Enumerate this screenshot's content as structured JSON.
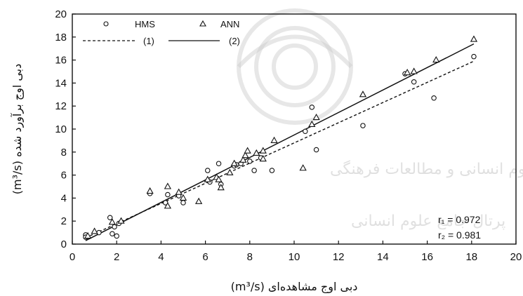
{
  "chart_data": {
    "type": "scatter",
    "xlabel": "دبی اوج مشاهده‌ای (m³/s)",
    "ylabel": "دبی اوج برآورد شده (m³/s)",
    "xlim": [
      0,
      20
    ],
    "ylim": [
      0,
      20
    ],
    "xticks": [
      "0",
      "2",
      "4",
      "6",
      "8",
      "10",
      "12",
      "14",
      "16",
      "18",
      "20"
    ],
    "yticks": [
      "0",
      "2",
      "4",
      "6",
      "8",
      "10",
      "12",
      "14",
      "16",
      "18",
      "20"
    ],
    "grid": false,
    "legend_position": "top-left",
    "legend": {
      "hms": "HMS",
      "ann": "ANN",
      "line1": "(1)",
      "line2": "(2)"
    },
    "annotations": {
      "r1": "r₁ = 0.972",
      "r2": "r₂ = 0.981"
    },
    "series": [
      {
        "name": "HMS",
        "marker": "circle",
        "points": [
          [
            0.6,
            0.8
          ],
          [
            0.6,
            0.6
          ],
          [
            1.2,
            1.0
          ],
          [
            1.7,
            2.3
          ],
          [
            1.8,
            0.9
          ],
          [
            1.9,
            1.5
          ],
          [
            2.0,
            0.7
          ],
          [
            2.1,
            1.8
          ],
          [
            3.5,
            4.4
          ],
          [
            4.3,
            4.3
          ],
          [
            4.2,
            3.6
          ],
          [
            4.8,
            4.2
          ],
          [
            5.0,
            3.6
          ],
          [
            6.1,
            6.4
          ],
          [
            6.2,
            5.4
          ],
          [
            6.6,
            7.0
          ],
          [
            6.7,
            5.2
          ],
          [
            7.3,
            6.8
          ],
          [
            7.4,
            6.9
          ],
          [
            7.6,
            7.0
          ],
          [
            8.0,
            7.2
          ],
          [
            8.2,
            6.4
          ],
          [
            8.5,
            7.5
          ],
          [
            9.0,
            6.4
          ],
          [
            10.5,
            9.8
          ],
          [
            10.8,
            11.9
          ],
          [
            11.0,
            8.2
          ],
          [
            13.1,
            10.3
          ],
          [
            15.0,
            14.8
          ],
          [
            15.4,
            14.1
          ],
          [
            16.3,
            12.7
          ],
          [
            18.1,
            16.3
          ]
        ]
      },
      {
        "name": "ANN",
        "marker": "triangle",
        "points": [
          [
            0.7,
            0.7
          ],
          [
            1.0,
            1.1
          ],
          [
            1.8,
            1.9
          ],
          [
            2.2,
            2.0
          ],
          [
            3.5,
            4.6
          ],
          [
            4.3,
            3.3
          ],
          [
            4.3,
            5.0
          ],
          [
            4.8,
            4.5
          ],
          [
            5.0,
            4.0
          ],
          [
            5.7,
            3.7
          ],
          [
            6.1,
            5.6
          ],
          [
            6.5,
            5.8
          ],
          [
            6.7,
            4.9
          ],
          [
            6.6,
            5.6
          ],
          [
            7.1,
            6.2
          ],
          [
            7.3,
            7.0
          ],
          [
            7.7,
            7.3
          ],
          [
            7.8,
            7.7
          ],
          [
            7.9,
            8.1
          ],
          [
            8.3,
            7.9
          ],
          [
            8.6,
            7.4
          ],
          [
            8.6,
            8.1
          ],
          [
            9.1,
            9.0
          ],
          [
            10.4,
            6.6
          ],
          [
            10.8,
            10.4
          ],
          [
            11.0,
            11.0
          ],
          [
            13.1,
            13.0
          ],
          [
            15.1,
            14.9
          ],
          [
            15.4,
            15.0
          ],
          [
            16.4,
            16.0
          ],
          [
            18.1,
            17.8
          ]
        ]
      }
    ],
    "fit_lines": [
      {
        "name": "(1)",
        "style": "dashed",
        "from": [
          0.6,
          0.55
        ],
        "to": [
          18.1,
          15.9
        ]
      },
      {
        "name": "(2)",
        "style": "solid",
        "from": [
          0.6,
          0.3
        ],
        "to": [
          18.1,
          17.4
        ]
      }
    ]
  }
}
